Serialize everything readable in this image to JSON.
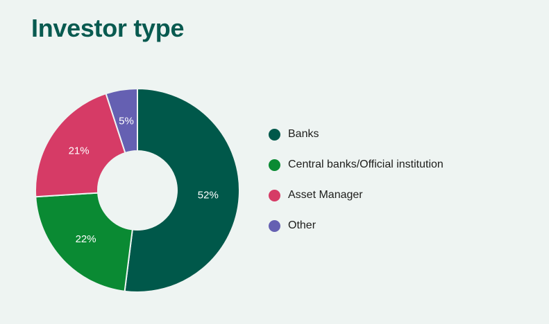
{
  "page": {
    "background_color": "#eef4f2",
    "title_color": "#085a50"
  },
  "title": "Investor type",
  "chart_data": {
    "type": "pie",
    "subtype": "donut",
    "title": "Investor type",
    "direction": "clockwise",
    "start_angle_deg": 0,
    "inner_radius_ratio": 0.39,
    "gap_color": "#eef4f2",
    "slice_label_color": "#ffffff",
    "legend_position": "right",
    "segments": [
      {
        "label": "Banks",
        "value": 52,
        "pct_label": "52%",
        "color": "#00584a"
      },
      {
        "label": "Central banks/Official institution",
        "value": 22,
        "pct_label": "22%",
        "color": "#0a8a33"
      },
      {
        "label": "Asset Manager",
        "value": 21,
        "pct_label": "21%",
        "color": "#d63b66"
      },
      {
        "label": "Other",
        "value": 5,
        "pct_label": "5%",
        "color": "#6560b2"
      }
    ]
  }
}
